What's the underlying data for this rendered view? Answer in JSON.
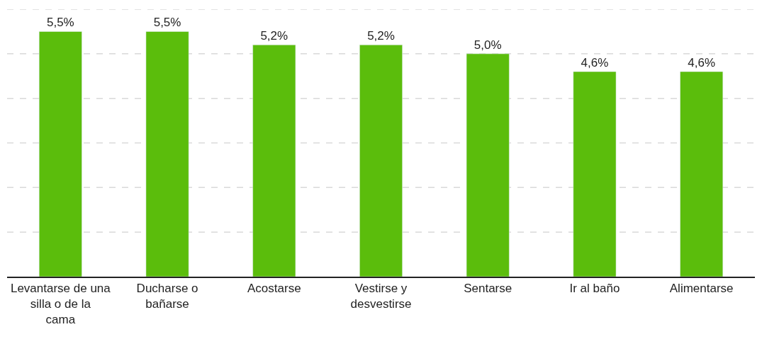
{
  "chart_data": {
    "type": "bar",
    "categories": [
      "Levantarse de una silla o de la cama",
      "Ducharse o bañarse",
      "Acostarse",
      "Vestirse y desvestirse",
      "Sentarse",
      "Ir al baño",
      "Alimentarse"
    ],
    "values": [
      5.5,
      5.5,
      5.2,
      5.2,
      5.0,
      4.6,
      4.6
    ],
    "value_labels": [
      "5,5%",
      "5,5%",
      "5,2%",
      "5,2%",
      "5,0%",
      "4,6%",
      "4,6%"
    ],
    "color": "#5bbd0c",
    "ylim": [
      0,
      6
    ],
    "yticks": [
      {
        "value": 0,
        "label": null
      },
      {
        "value": 1,
        "label": null
      },
      {
        "value": 2,
        "label": null
      },
      {
        "value": 3,
        "label": null
      },
      {
        "value": 4,
        "label": null
      },
      {
        "value": 5,
        "label": null
      },
      {
        "value": 6,
        "label": null
      }
    ],
    "grid": "y",
    "tick_labels": "x",
    "legend": false
  }
}
